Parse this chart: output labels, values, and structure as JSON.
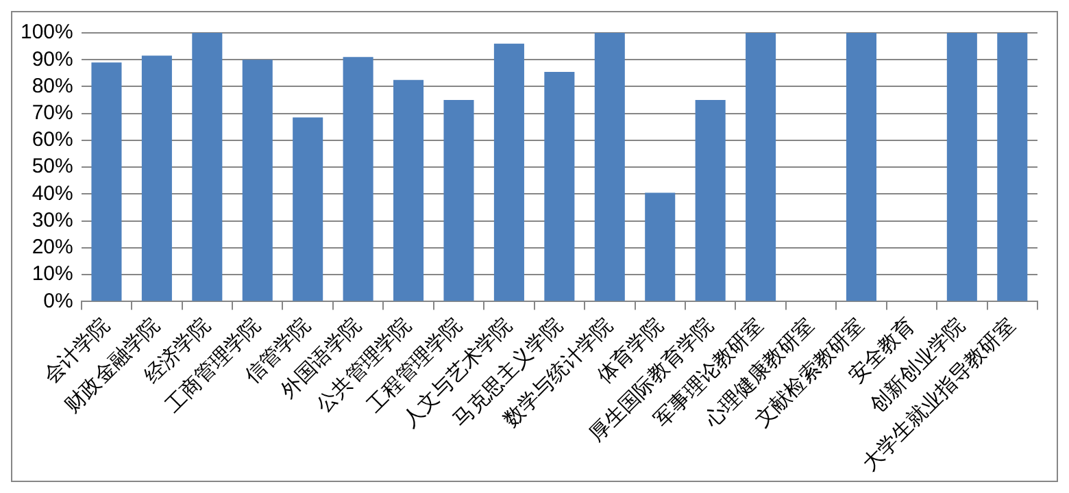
{
  "chart_data": {
    "type": "bar",
    "categories": [
      "会计学院",
      "财政金融学院",
      "经济学院",
      "工商管理学院",
      "信管学院",
      "外国语学院",
      "公共管理学院",
      "工程管理学院",
      "人文与艺术学院",
      "马克思主义学院",
      "数学与统计学院",
      "体育学院",
      "厚生国际教育学院",
      "军事理论教研室",
      "心理健康教研室",
      "文献检索教研室",
      "安全教育",
      "创新创业学院",
      "大学生就业指导教研室"
    ],
    "values": [
      89,
      91.5,
      100,
      90,
      68.5,
      91,
      82.5,
      75,
      96,
      85.5,
      100,
      40.5,
      75,
      100,
      0,
      100,
      0,
      100,
      100
    ],
    "color": "#4f81bd",
    "ylim": [
      0,
      100
    ],
    "yticks": [
      {
        "value": 0,
        "label": "0%"
      },
      {
        "value": 10,
        "label": "10%"
      },
      {
        "value": 20,
        "label": "20%"
      },
      {
        "value": 30,
        "label": "30%"
      },
      {
        "value": 40,
        "label": "40%"
      },
      {
        "value": 50,
        "label": "50%"
      },
      {
        "value": 60,
        "label": "60%"
      },
      {
        "value": 70,
        "label": "70%"
      },
      {
        "value": 80,
        "label": "80%"
      },
      {
        "value": 90,
        "label": "90%"
      },
      {
        "value": 100,
        "label": "100%"
      }
    ],
    "grid": "y",
    "legend": false
  }
}
